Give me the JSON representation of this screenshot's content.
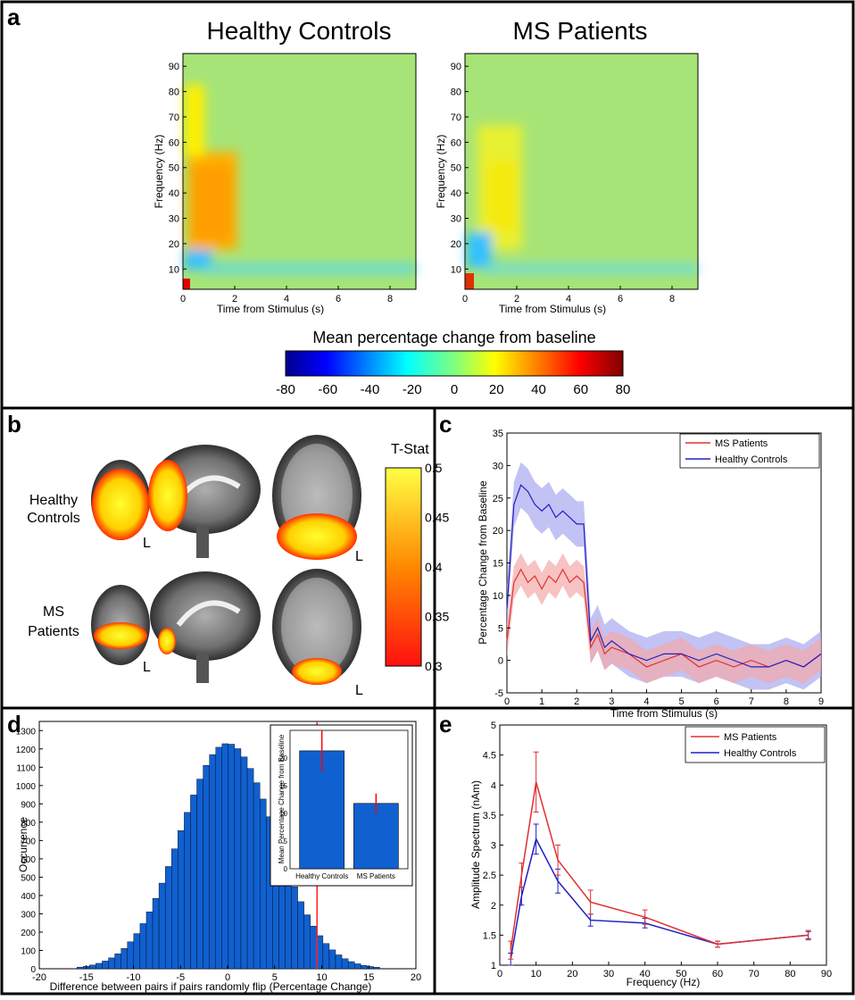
{
  "panel_labels": {
    "a": "a",
    "b": "b",
    "c": "c",
    "d": "d",
    "e": "e"
  },
  "chart_data": [
    {
      "id": "a",
      "type": "heatmap",
      "titles": [
        "Healthy Controls",
        "MS Patients"
      ],
      "xlabel": "Time from Stimulus (s)",
      "ylabel": "Frequency (Hz)",
      "xlim": [
        0,
        9
      ],
      "ylim": [
        2,
        95
      ],
      "xticks": [
        0,
        2,
        4,
        6,
        8
      ],
      "yticks": [
        10,
        20,
        30,
        40,
        50,
        60,
        70,
        80,
        90
      ],
      "colorbar": {
        "title": "Mean percentage change from baseline",
        "range": [
          -80,
          80
        ],
        "ticks": [
          -80,
          -60,
          -40,
          -20,
          0,
          20,
          40,
          60,
          80
        ]
      }
    },
    {
      "id": "b",
      "type": "brain-map",
      "row_labels": [
        [
          "Healthy",
          "Controls"
        ],
        [
          "MS",
          "Patients"
        ]
      ],
      "orientation_label": "L",
      "colorbar": {
        "title": "T-Stat",
        "range": [
          0.3,
          0.5
        ],
        "ticks": [
          "0.5",
          "0.45",
          "0.4",
          "0.35",
          "0.3"
        ]
      }
    },
    {
      "id": "c",
      "type": "line",
      "xlabel": "Time from Stimulus (s)",
      "ylabel": "Percentage Change from Baseline",
      "xlim": [
        0,
        9
      ],
      "ylim": [
        -5,
        35
      ],
      "xticks": [
        0,
        1,
        2,
        3,
        4,
        5,
        6,
        7,
        8,
        9
      ],
      "yticks": [
        -5,
        0,
        5,
        10,
        15,
        20,
        25,
        30,
        35
      ],
      "legend_position": "top-right",
      "series": [
        {
          "name": "MS Patients",
          "color": "#e03030",
          "x": [
            0,
            0.2,
            0.4,
            0.6,
            0.8,
            1.0,
            1.2,
            1.4,
            1.6,
            1.8,
            2.0,
            2.2,
            2.4,
            2.6,
            2.8,
            3.0,
            3.5,
            4.0,
            4.5,
            5.0,
            5.5,
            6.0,
            6.5,
            7.0,
            7.5,
            8.0,
            8.5,
            9.0
          ],
          "y": [
            3,
            12,
            14,
            12,
            13,
            11,
            13,
            12,
            14,
            12,
            13,
            12,
            2,
            4,
            1,
            2,
            1,
            -1,
            0,
            1,
            -1,
            0,
            -1,
            0,
            -1,
            0,
            -1,
            1
          ]
        },
        {
          "name": "Healthy Controls",
          "color": "#2020c0",
          "x": [
            0,
            0.2,
            0.4,
            0.6,
            0.8,
            1.0,
            1.2,
            1.4,
            1.6,
            1.8,
            2.0,
            2.2,
            2.4,
            2.6,
            2.8,
            3.0,
            3.5,
            4.0,
            4.5,
            5.0,
            5.5,
            6.0,
            6.5,
            7.0,
            7.5,
            8.0,
            8.5,
            9.0
          ],
          "y": [
            8,
            24,
            27,
            26,
            24,
            23,
            24,
            22,
            23,
            22,
            21,
            21,
            3,
            5,
            2,
            3,
            1,
            0,
            1,
            1,
            0,
            1,
            0,
            -1,
            -1,
            0,
            -1,
            1
          ]
        }
      ]
    },
    {
      "id": "d",
      "type": "bar",
      "xlabel": "Difference between pairs if pairs randomly flip (Percentage Change)",
      "ylabel": "Occurrence",
      "xlim": [
        -20,
        20
      ],
      "ylim": [
        0,
        1350
      ],
      "xticks": [
        -20,
        -15,
        -10,
        -5,
        0,
        5,
        10,
        15,
        20
      ],
      "yticks": [
        0,
        100,
        200,
        300,
        400,
        500,
        600,
        700,
        800,
        900,
        1000,
        1100,
        1200,
        1300
      ],
      "bin_width": 0.67,
      "observed_line_x": 9.5,
      "inset": {
        "type": "bar",
        "ylabel": "Mean Percentage Change from Baseline",
        "categories": [
          "Healthy Controls",
          "MS Patients"
        ],
        "values": [
          21.3,
          11.8
        ],
        "errors": [
          3.7,
          1.8
        ],
        "ylim": [
          0,
          25
        ],
        "yticks": [
          0,
          5,
          10,
          15,
          20
        ]
      }
    },
    {
      "id": "e",
      "type": "line",
      "xlabel": "Frequency (Hz)",
      "ylabel": "Amplitude Spectrum (nAm)",
      "xlim": [
        0,
        90
      ],
      "ylim": [
        1,
        5
      ],
      "xticks": [
        0,
        10,
        20,
        30,
        40,
        50,
        60,
        70,
        80,
        90
      ],
      "yticks": [
        1,
        1.5,
        2,
        2.5,
        3,
        3.5,
        4,
        4.5,
        5
      ],
      "legend_position": "top-right",
      "categories": [
        3,
        6,
        10,
        16,
        25,
        40,
        60,
        85
      ],
      "series": [
        {
          "name": "MS Patients",
          "color": "#e03030",
          "values": [
            1.25,
            2.5,
            4.05,
            2.75,
            2.05,
            1.8,
            1.35,
            1.5
          ],
          "errors": [
            0.15,
            0.2,
            0.5,
            0.25,
            0.2,
            0.12,
            0.05,
            0.08
          ]
        },
        {
          "name": "Healthy Controls",
          "color": "#2020c0",
          "values": [
            1.1,
            2.15,
            3.1,
            2.4,
            1.75,
            1.7,
            1.35,
            1.5
          ],
          "errors": [
            0.1,
            0.15,
            0.25,
            0.2,
            0.1,
            0.08,
            0.05,
            0.06
          ]
        }
      ]
    }
  ]
}
